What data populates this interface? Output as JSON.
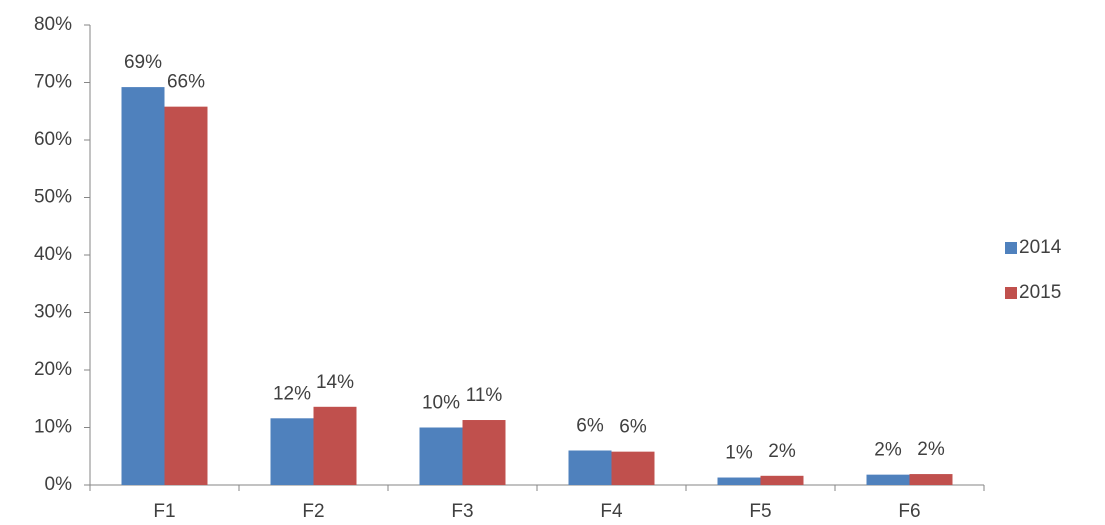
{
  "chart_data": {
    "type": "bar",
    "categories": [
      "F1",
      "F2",
      "F3",
      "F4",
      "F5",
      "F6"
    ],
    "series": [
      {
        "name": "2014",
        "color": "#4f81bd",
        "values": [
          69.2,
          11.6,
          10.0,
          6.0,
          1.3,
          1.8
        ],
        "value_labels": [
          "69%",
          "12%",
          "10%",
          "6%",
          "1%",
          "2%"
        ]
      },
      {
        "name": "2015",
        "color": "#c0504d",
        "values": [
          65.8,
          13.6,
          11.3,
          5.8,
          1.6,
          1.9
        ],
        "value_labels": [
          "66%",
          "14%",
          "11%",
          "6%",
          "2%",
          "2%"
        ]
      }
    ],
    "ylim": [
      0,
      80
    ],
    "yticks": [
      {
        "value": 0,
        "label": "0%"
      },
      {
        "value": 10,
        "label": "10%"
      },
      {
        "value": 20,
        "label": "20%"
      },
      {
        "value": 30,
        "label": "30%"
      },
      {
        "value": 40,
        "label": "40%"
      },
      {
        "value": 50,
        "label": "50%"
      },
      {
        "value": 60,
        "label": "60%"
      },
      {
        "value": 70,
        "label": "70%"
      },
      {
        "value": 80,
        "label": "80%"
      }
    ],
    "grid": false,
    "legend": "right"
  }
}
